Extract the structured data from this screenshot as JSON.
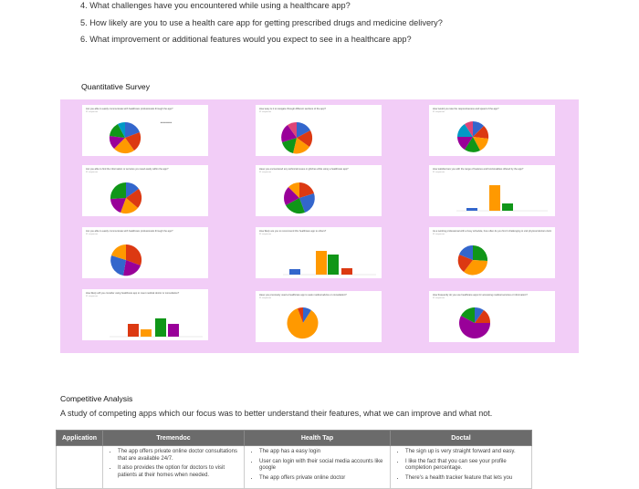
{
  "questions": [
    "4. What challenges have you encountered while using a healthcare app?",
    "5. How likely are you to use a health care app for getting prescribed drugs and medicine delivery?",
    "6. What improvement or additional features would you expect to see in a healthcare app?"
  ],
  "survey": {
    "heading": "Quantitative Survey",
    "cards": [
      {
        "title": "Are you able to easily communicate with healthcare professionals through the app?",
        "sub": "31 responses",
        "kind": "pie"
      },
      {
        "title": "How easy is it to navigate through different sections of the app?",
        "sub": "31 responses",
        "kind": "pie"
      },
      {
        "title": "How would you rate the responsiveness and speed of the app?",
        "sub": "31 responses",
        "kind": "pie"
      },
      {
        "title": "Are you able to find the information or services you need easily within the app?",
        "sub": "31 responses",
        "kind": "pie"
      },
      {
        "title": "Have you encountered any technical issues or glitches while using a healthcare app?",
        "sub": "31 responses",
        "kind": "pie"
      },
      {
        "title": "How satisfied are you with the range of features and functionalities offered by the app?",
        "sub": "31 responses",
        "kind": "bar"
      },
      {
        "title": "Are you able to easily communicate with healthcare professionals through the app?",
        "sub": "31 responses",
        "kind": "pie"
      },
      {
        "title": "How likely are you to recommend this healthcare app to others?",
        "sub": "31 responses",
        "kind": "bar"
      },
      {
        "title": "As a working professional with a busy schedule, how often do you find it challenging to visit physical doctors during work hours?",
        "sub": "31 responses",
        "kind": "pie"
      },
      {
        "title": "How likely will you consider using healthcare app to meet medical doctor or consultation?",
        "sub": "31 responses",
        "kind": "bar"
      },
      {
        "title": "Have you previously used a healthcare app to seek medical advice or consultation?",
        "sub": "31 responses",
        "kind": "pie"
      },
      {
        "title": "How frequently do you use healthcare apps for accessing medical services or information?",
        "sub": "31 responses",
        "kind": "pie"
      }
    ]
  },
  "competitive": {
    "heading": "Competitive Analysis",
    "intro": "A study of competing apps which our focus was to better understand their features, what we can improve and what not.",
    "columns": [
      "Application",
      "Tremendoc",
      "Health Tap",
      "Doctal"
    ],
    "rows": [
      {
        "app": "",
        "tremendoc": [
          "The app offers private online doctor consultations that are available 24/7.",
          "It also provides the option for doctors to visit patients at their homes when needed."
        ],
        "healthtap": [
          "The app has a easy login",
          "User can login with their social media accounts like google",
          "The app offers private online doctor"
        ],
        "doctal": [
          "The sign up is very straight forward and easy.",
          "I like the fact that you can see your profile completion percentage.",
          "There's a health tracker feature that lets you"
        ]
      }
    ]
  },
  "colors": {
    "panel": "#f2cdf7",
    "table_header": "#6b6b6b"
  }
}
